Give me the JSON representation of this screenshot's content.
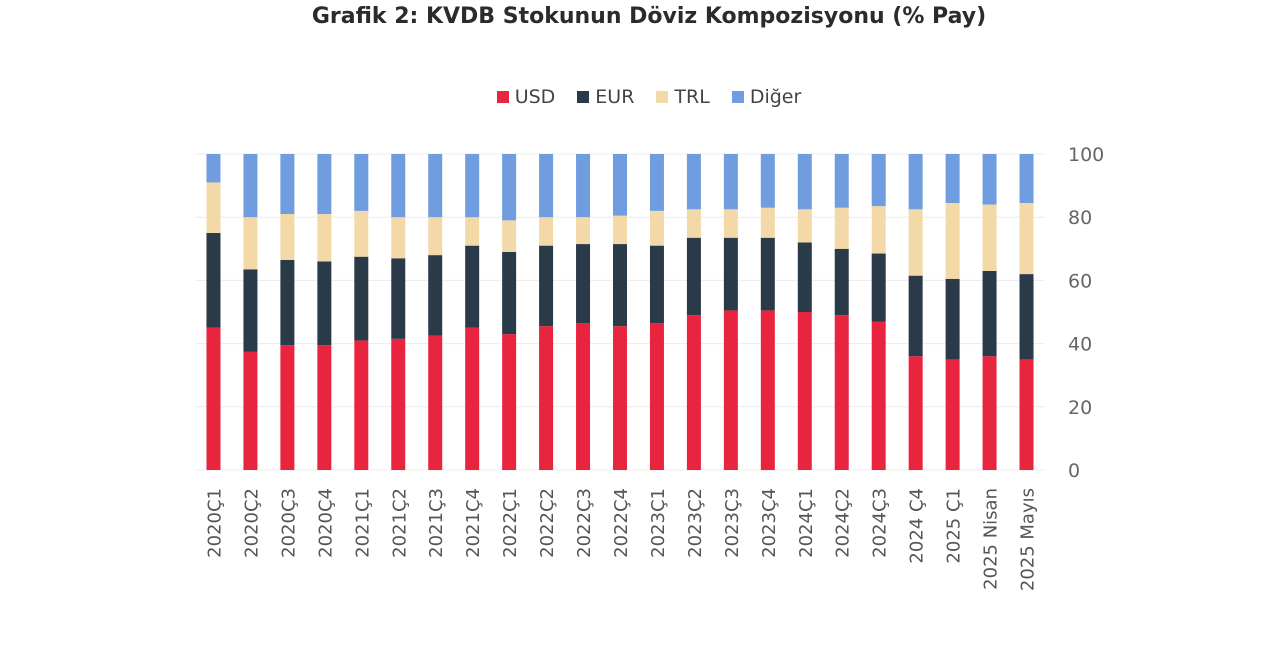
{
  "chart_data": {
    "type": "bar",
    "stacked": true,
    "title": "Grafik 2: KVDB Stokunun Döviz Kompozisyonu (% Pay)",
    "xlabel": "",
    "ylabel": "",
    "ylim": [
      0,
      100
    ],
    "yticks": [
      "0",
      "20",
      "40",
      "60",
      "80",
      "100"
    ],
    "grid": true,
    "legend_position": "top",
    "categories": [
      "2020Ç1",
      "2020Ç2",
      "2020Ç3",
      "2020Ç4",
      "2021Ç1",
      "2021Ç2",
      "2021Ç3",
      "2021Ç4",
      "2022Ç1",
      "2022Ç2",
      "2022Ç3",
      "2022Ç4",
      "2023Ç1",
      "2023Ç2",
      "2023Ç3",
      "2023Ç4",
      "2024Ç1",
      "2024Ç2",
      "2024Ç3",
      "2024 Ç4",
      "2025 Ç1",
      "2025 Nisan",
      "2025 Mayıs"
    ],
    "series": [
      {
        "name": "USD",
        "color": "#e8243e",
        "values": [
          45,
          37.5,
          39.5,
          39.5,
          41,
          41.5,
          42.5,
          45,
          43,
          45.5,
          46.5,
          45.5,
          46.5,
          49,
          50.5,
          50.5,
          50,
          49,
          47,
          36,
          35,
          36,
          35
        ]
      },
      {
        "name": "EUR",
        "color": "#2b3a48",
        "values": [
          30,
          26,
          27,
          26.5,
          26.5,
          25.5,
          25.5,
          26,
          26,
          25.5,
          25,
          26,
          24.5,
          24.5,
          23,
          23,
          22,
          21,
          21.5,
          25.5,
          25.5,
          27,
          27
        ]
      },
      {
        "name": "TRL",
        "color": "#f3d9a8",
        "values": [
          16,
          16.5,
          14.5,
          15,
          14.5,
          13,
          12,
          9,
          10,
          9,
          8.5,
          9,
          11,
          9,
          9,
          9.5,
          10.5,
          13,
          15,
          21,
          24,
          21,
          22.5
        ]
      },
      {
        "name": "Diğer",
        "color": "#6f9de0",
        "values": [
          9,
          20,
          19,
          19,
          18,
          20,
          20,
          20,
          21,
          20,
          20,
          19.5,
          18,
          17.5,
          17.5,
          17,
          17.5,
          17,
          16.5,
          17.5,
          15.5,
          16,
          15.5
        ]
      }
    ]
  }
}
